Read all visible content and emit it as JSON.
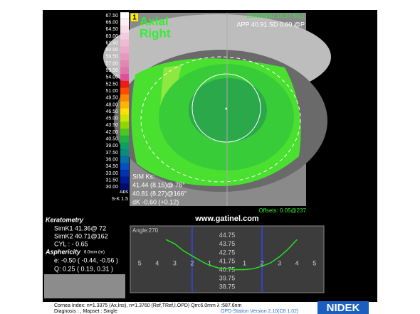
{
  "scale": {
    "labels": [
      "67.50",
      "66.00",
      "64.50",
      "63.00",
      "61.50",
      "60.00",
      "58.50",
      "57.00",
      "55.50",
      "54.00",
      "52.50",
      "51.00",
      "49.50",
      "48.00",
      "46.50",
      "45.00",
      "43.50",
      "42.00",
      "40.50",
      "39.00",
      "37.50",
      "36.00",
      "34.50",
      "33.00",
      "31.50",
      "30.00"
    ],
    "colors": [
      "#ffffff",
      "#fbeef4",
      "#f7dde9",
      "#f3cbdf",
      "#efbad4",
      "#ebaaca",
      "#e798bf",
      "#e386b4",
      "#df74a9",
      "#e0509a",
      "#f01818",
      "#ff4a00",
      "#ff8400",
      "#ffb400",
      "#ffe000",
      "#c8e400",
      "#8ed800",
      "#4cc820",
      "#1eb43c",
      "#0aa060",
      "#088c80",
      "#0670a4",
      "#0450c4",
      "#0232b4",
      "#011c94",
      "#000c70"
    ],
    "abs": "Abs",
    "sk": "S-K 1.5"
  },
  "map": {
    "number": "1",
    "title1": "Axial",
    "title2": "Right",
    "datetime": "2009/06/02 16:37 No.1",
    "app": "APP 40.91 SD 0.60 @P",
    "simks": [
      "SIM Ks:",
      "41.44 (8.15)@ 76°",
      "40.81 (8.27)@166°",
      "dK -0.60 (+0.12)"
    ],
    "offsets": "Offsets: 0.05@237"
  },
  "keratometry": {
    "title": "Keratometry",
    "simk1": "SimK1 41.36@ 72",
    "simk2": "SimK2 40.71@162",
    "cyl": "CYL   : - 0.65",
    "asphericity": "Asphericity",
    "asph_unit": "6.0mm (m)",
    "e": "e:  -0.50 ( -0.44, -0.56 )",
    "q": "Q:   0.25 (  0.19,   0.31 )"
  },
  "website": "www.gatinel.com",
  "chart_data": {
    "type": "line",
    "title": "Angle:270",
    "x": [
      -3.5,
      -3,
      -2.5,
      -2,
      -1.5,
      -1,
      -0.5,
      0,
      0.5,
      1,
      1.5,
      2,
      2.5,
      3,
      3.5,
      4
    ],
    "series": [
      {
        "color": "#22e022",
        "values": [
          44.3,
          43.8,
          43.0,
          42.4,
          41.8,
          41.3,
          41.0,
          40.9,
          40.8,
          40.8,
          40.9,
          41.2,
          41.6,
          42.3,
          43.2,
          44.3
        ]
      }
    ],
    "xlim": [
      -5.5,
      5.5
    ],
    "ylim": [
      38.2,
      45.8
    ],
    "xticks": [
      {
        "value": -5,
        "label": "5"
      },
      {
        "value": -4,
        "label": "4"
      },
      {
        "value": -3,
        "label": "3"
      },
      {
        "value": -2,
        "label": "2"
      },
      {
        "value": -1,
        "label": "1"
      },
      1,
      2,
      3,
      4,
      5
    ],
    "yticks": [
      44.75,
      43.75,
      42.75,
      41.75,
      40.75,
      39.75,
      38.75
    ],
    "vlines": [
      -2,
      2
    ],
    "vline_color": "#3344ee"
  },
  "footer": {
    "line1": "Cornea Index: n=1.3375 (Ax,Ins), n=1.3760 (Ref,TRef,I.OPD)  Qm:6.0mm  λ :587.6nm",
    "line2": "Diagnosis : , Mapset : Single",
    "version": "OPD-Station Version 2.10(C8 1.02)",
    "logo": "NIDEK"
  }
}
